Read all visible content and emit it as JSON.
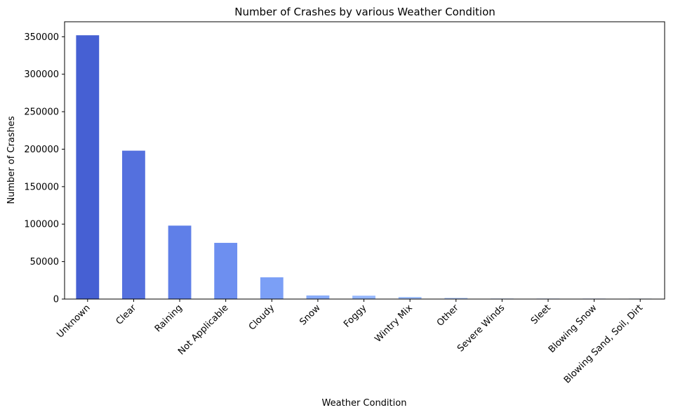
{
  "chart_data": {
    "type": "bar",
    "title": "Number of Crashes by various Weather Condition",
    "xlabel": "Weather Condition",
    "ylabel": "Number of Crashes",
    "categories": [
      "Unknown",
      "Clear",
      "Raining",
      "Not Applicable",
      "Cloudy",
      "Snow",
      "Foggy",
      "Wintry Mix",
      "Other",
      "Severe Winds",
      "Sleet",
      "Blowing Snow",
      "Blowing Sand, Soil, Dirt"
    ],
    "values": [
      352000,
      198000,
      98000,
      75000,
      29000,
      4800,
      4500,
      2800,
      1600,
      600,
      450,
      300,
      120
    ],
    "ylim": [
      0,
      370000
    ],
    "yticks": [
      0,
      50000,
      100000,
      150000,
      200000,
      250000,
      300000,
      350000
    ],
    "ytick_labels": [
      "0",
      "50000",
      "100000",
      "150000",
      "200000",
      "250000",
      "300000",
      "350000"
    ],
    "grid": false,
    "legend": "none",
    "colors": [
      "#4660d3",
      "#5470de",
      "#5f7fe8",
      "#6d8ff0",
      "#7b9ff6",
      "#88acfa",
      "#95b7fd",
      "#a2c1fe",
      "#afc9fe",
      "#bbd1fd",
      "#c6d6fb",
      "#d0dbf8",
      "#d9def3"
    ]
  }
}
